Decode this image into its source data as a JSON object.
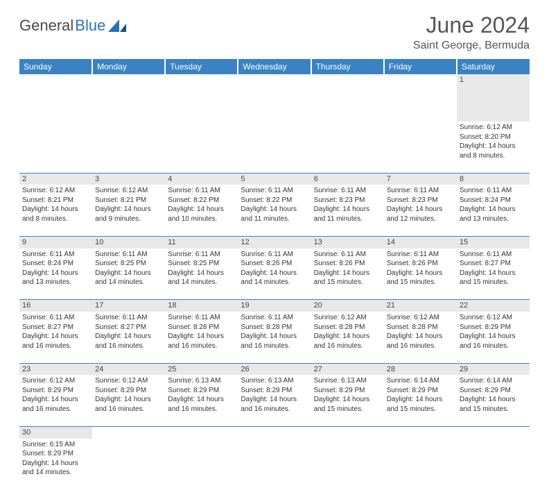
{
  "logo": {
    "word1": "General",
    "word2": "Blue"
  },
  "title": "June 2024",
  "location": "Saint George, Bermuda",
  "colors": {
    "header_bg": "#3b82c4",
    "header_text": "#ffffff",
    "daynum_bg": "#e8e8e8",
    "cell_border": "#3b82c4",
    "logo_gray": "#4a4a4a",
    "logo_blue": "#2b71b8",
    "text": "#333333"
  },
  "typography": {
    "title_fontsize": 32,
    "location_fontsize": 16,
    "header_fontsize": 12,
    "cell_fontsize": 10,
    "daynum_fontsize": 11
  },
  "day_headers": [
    "Sunday",
    "Monday",
    "Tuesday",
    "Wednesday",
    "Thursday",
    "Friday",
    "Saturday"
  ],
  "weeks": [
    {
      "nums": [
        "",
        "",
        "",
        "",
        "",
        "",
        "1"
      ],
      "cells": [
        null,
        null,
        null,
        null,
        null,
        null,
        {
          "sunrise": "Sunrise: 6:12 AM",
          "sunset": "Sunset: 8:20 PM",
          "daylight": "Daylight: 14 hours and 8 minutes."
        }
      ]
    },
    {
      "nums": [
        "2",
        "3",
        "4",
        "5",
        "6",
        "7",
        "8"
      ],
      "cells": [
        {
          "sunrise": "Sunrise: 6:12 AM",
          "sunset": "Sunset: 8:21 PM",
          "daylight": "Daylight: 14 hours and 8 minutes."
        },
        {
          "sunrise": "Sunrise: 6:12 AM",
          "sunset": "Sunset: 8:21 PM",
          "daylight": "Daylight: 14 hours and 9 minutes."
        },
        {
          "sunrise": "Sunrise: 6:11 AM",
          "sunset": "Sunset: 8:22 PM",
          "daylight": "Daylight: 14 hours and 10 minutes."
        },
        {
          "sunrise": "Sunrise: 6:11 AM",
          "sunset": "Sunset: 8:22 PM",
          "daylight": "Daylight: 14 hours and 11 minutes."
        },
        {
          "sunrise": "Sunrise: 6:11 AM",
          "sunset": "Sunset: 8:23 PM",
          "daylight": "Daylight: 14 hours and 11 minutes."
        },
        {
          "sunrise": "Sunrise: 6:11 AM",
          "sunset": "Sunset: 8:23 PM",
          "daylight": "Daylight: 14 hours and 12 minutes."
        },
        {
          "sunrise": "Sunrise: 6:11 AM",
          "sunset": "Sunset: 8:24 PM",
          "daylight": "Daylight: 14 hours and 13 minutes."
        }
      ]
    },
    {
      "nums": [
        "9",
        "10",
        "11",
        "12",
        "13",
        "14",
        "15"
      ],
      "cells": [
        {
          "sunrise": "Sunrise: 6:11 AM",
          "sunset": "Sunset: 8:24 PM",
          "daylight": "Daylight: 14 hours and 13 minutes."
        },
        {
          "sunrise": "Sunrise: 6:11 AM",
          "sunset": "Sunset: 8:25 PM",
          "daylight": "Daylight: 14 hours and 14 minutes."
        },
        {
          "sunrise": "Sunrise: 6:11 AM",
          "sunset": "Sunset: 8:25 PM",
          "daylight": "Daylight: 14 hours and 14 minutes."
        },
        {
          "sunrise": "Sunrise: 6:11 AM",
          "sunset": "Sunset: 8:26 PM",
          "daylight": "Daylight: 14 hours and 14 minutes."
        },
        {
          "sunrise": "Sunrise: 6:11 AM",
          "sunset": "Sunset: 8:26 PM",
          "daylight": "Daylight: 14 hours and 15 minutes."
        },
        {
          "sunrise": "Sunrise: 6:11 AM",
          "sunset": "Sunset: 8:26 PM",
          "daylight": "Daylight: 14 hours and 15 minutes."
        },
        {
          "sunrise": "Sunrise: 6:11 AM",
          "sunset": "Sunset: 8:27 PM",
          "daylight": "Daylight: 14 hours and 15 minutes."
        }
      ]
    },
    {
      "nums": [
        "16",
        "17",
        "18",
        "19",
        "20",
        "21",
        "22"
      ],
      "cells": [
        {
          "sunrise": "Sunrise: 6:11 AM",
          "sunset": "Sunset: 8:27 PM",
          "daylight": "Daylight: 14 hours and 16 minutes."
        },
        {
          "sunrise": "Sunrise: 6:11 AM",
          "sunset": "Sunset: 8:27 PM",
          "daylight": "Daylight: 14 hours and 16 minutes."
        },
        {
          "sunrise": "Sunrise: 6:11 AM",
          "sunset": "Sunset: 8:28 PM",
          "daylight": "Daylight: 14 hours and 16 minutes."
        },
        {
          "sunrise": "Sunrise: 6:11 AM",
          "sunset": "Sunset: 8:28 PM",
          "daylight": "Daylight: 14 hours and 16 minutes."
        },
        {
          "sunrise": "Sunrise: 6:12 AM",
          "sunset": "Sunset: 8:28 PM",
          "daylight": "Daylight: 14 hours and 16 minutes."
        },
        {
          "sunrise": "Sunrise: 6:12 AM",
          "sunset": "Sunset: 8:28 PM",
          "daylight": "Daylight: 14 hours and 16 minutes."
        },
        {
          "sunrise": "Sunrise: 6:12 AM",
          "sunset": "Sunset: 8:29 PM",
          "daylight": "Daylight: 14 hours and 16 minutes."
        }
      ]
    },
    {
      "nums": [
        "23",
        "24",
        "25",
        "26",
        "27",
        "28",
        "29"
      ],
      "cells": [
        {
          "sunrise": "Sunrise: 6:12 AM",
          "sunset": "Sunset: 8:29 PM",
          "daylight": "Daylight: 14 hours and 16 minutes."
        },
        {
          "sunrise": "Sunrise: 6:12 AM",
          "sunset": "Sunset: 8:29 PM",
          "daylight": "Daylight: 14 hours and 16 minutes."
        },
        {
          "sunrise": "Sunrise: 6:13 AM",
          "sunset": "Sunset: 8:29 PM",
          "daylight": "Daylight: 14 hours and 16 minutes."
        },
        {
          "sunrise": "Sunrise: 6:13 AM",
          "sunset": "Sunset: 8:29 PM",
          "daylight": "Daylight: 14 hours and 16 minutes."
        },
        {
          "sunrise": "Sunrise: 6:13 AM",
          "sunset": "Sunset: 8:29 PM",
          "daylight": "Daylight: 14 hours and 15 minutes."
        },
        {
          "sunrise": "Sunrise: 6:14 AM",
          "sunset": "Sunset: 8:29 PM",
          "daylight": "Daylight: 14 hours and 15 minutes."
        },
        {
          "sunrise": "Sunrise: 6:14 AM",
          "sunset": "Sunset: 8:29 PM",
          "daylight": "Daylight: 14 hours and 15 minutes."
        }
      ]
    },
    {
      "nums": [
        "30",
        "",
        "",
        "",
        "",
        "",
        ""
      ],
      "cells": [
        {
          "sunrise": "Sunrise: 6:15 AM",
          "sunset": "Sunset: 8:29 PM",
          "daylight": "Daylight: 14 hours and 14 minutes."
        },
        null,
        null,
        null,
        null,
        null,
        null
      ]
    }
  ]
}
